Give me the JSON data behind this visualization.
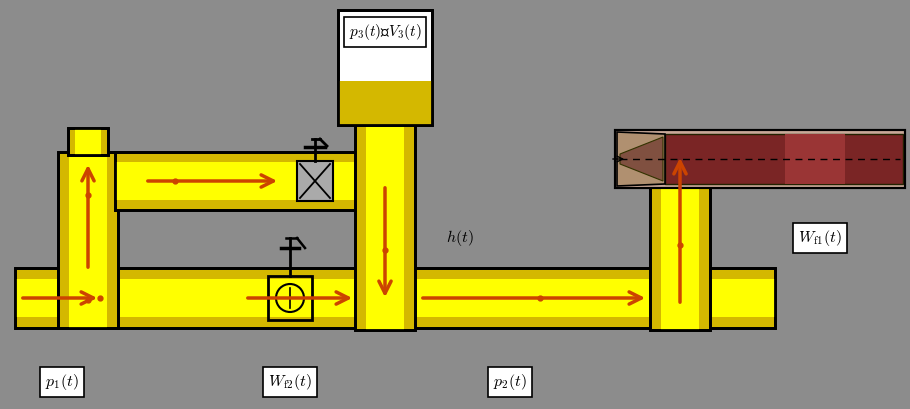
{
  "bg_color": "#8c8c8c",
  "pipe_fill": "#d4b800",
  "pipe_highlight": "#ffff00",
  "pipe_border": "#000000",
  "arrow_color": "#cc4400",
  "fig_width": 9.1,
  "fig_height": 4.09,
  "dpi": 100,
  "labels": {
    "p1": "$p_{1}(t)$",
    "Wf2": "$W_{\\mathrm{f2}}(t)$",
    "p2": "$p_{2}(t)$",
    "ht": "$h(t)$",
    "p3V3": "$p_{3}(t)$、$V_{3}(t)$",
    "Wf1": "$W_{\\mathrm{f1}}(t)$"
  }
}
